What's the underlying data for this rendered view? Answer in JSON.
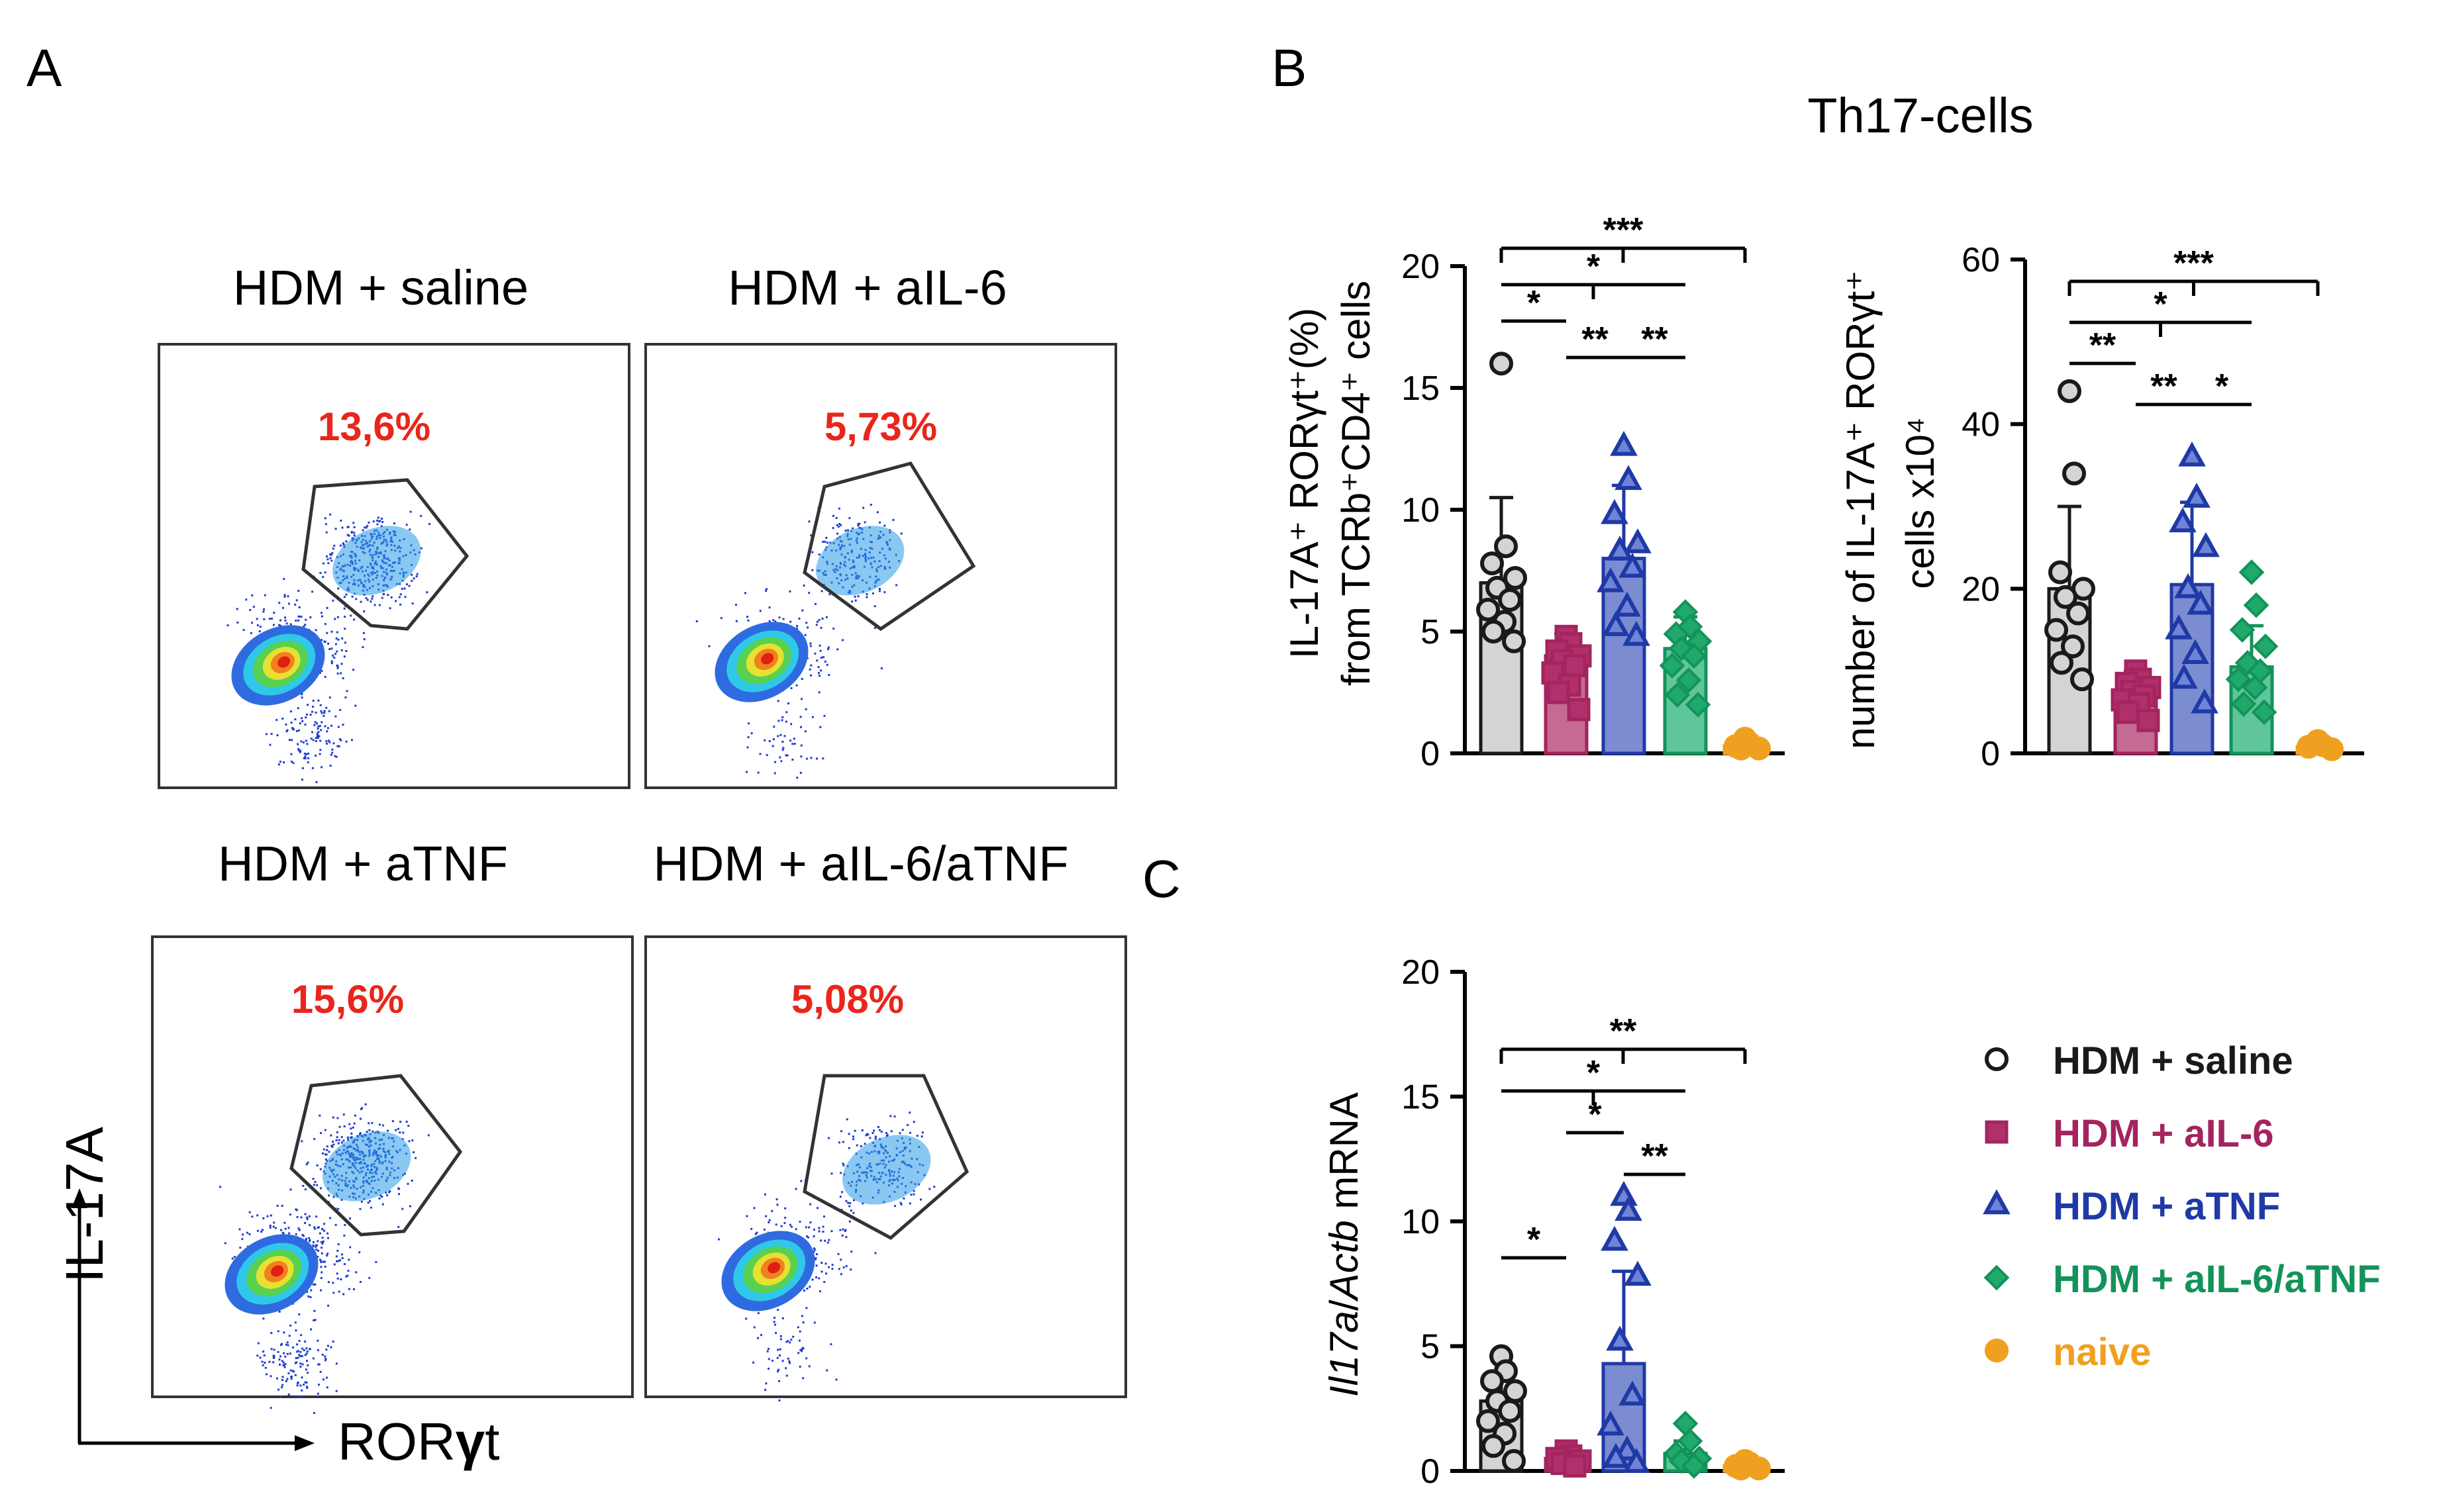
{
  "panels": {
    "A": "A",
    "B": "B",
    "C": "C"
  },
  "panel_a": {
    "plots": [
      {
        "label": "HDM + saline",
        "percent": "13,6%",
        "color": "#1a1a1a",
        "density": 1.0
      },
      {
        "label": "HDM + aIL-6",
        "percent": "5,73%",
        "color": "#c01818",
        "density": 0.55
      },
      {
        "label": "HDM + aTNF",
        "percent": "15,6%",
        "color": "#2e4fa8",
        "density": 1.1
      },
      {
        "label": "HDM + aIL-6/aTNF",
        "percent": "5,08%",
        "color": "#13935a",
        "density": 0.6
      }
    ],
    "y_axis_label": "IL-17A",
    "x_axis_label_prefix": "ROR",
    "x_axis_label_greek": "γ",
    "x_axis_label_suffix": "t"
  },
  "panel_b": {
    "title": "Th17-cells"
  },
  "legend": [
    {
      "label": "HDM + saline",
      "marker": "circle-open",
      "color": "#1a1a1a"
    },
    {
      "label": "HDM + aIL-6",
      "marker": "square",
      "color": "#a3245e"
    },
    {
      "label": "HDM + aTNF",
      "marker": "triangle",
      "color": "#1f3aa6"
    },
    {
      "label": "HDM + aIL-6/aTNF",
      "marker": "diamond",
      "color": "#13935a"
    },
    {
      "label": "naive",
      "marker": "circle",
      "color": "#f0a020"
    }
  ],
  "chart_data": [
    {
      "type": "bar",
      "id": "b-percent",
      "categories": [
        "HDM + saline",
        "HDM + aIL-6",
        "HDM + aTNF",
        "HDM + aIL-6/aTNF",
        "naive"
      ],
      "values": [
        7.0,
        4.0,
        8.0,
        4.3,
        0.3
      ],
      "error": [
        3.5,
        0.9,
        3.0,
        1.3,
        0.1
      ],
      "ylabel_line1": "IL-17A⁺ RORγt⁺(%)",
      "ylabel_line2": "from TCRb⁺CD4⁺ cells",
      "ylim": [
        0,
        20
      ],
      "yticks": [
        "0",
        "5",
        "10",
        "15",
        "20"
      ],
      "points": [
        [
          16,
          8.5,
          7.8,
          7.2,
          6.8,
          6.3,
          5.9,
          5.4,
          5.0,
          4.6
        ],
        [
          4.8,
          4.5,
          4.2,
          4.0,
          3.8,
          3.6,
          3.3,
          2.8,
          2.5,
          1.8
        ],
        [
          12.6,
          11.2,
          9.8,
          8.6,
          8.3,
          7.6,
          7.0,
          6.0,
          5.2,
          4.8
        ],
        [
          5.8,
          5.2,
          4.9,
          4.6,
          4.3,
          4.0,
          3.6,
          3.0,
          2.4,
          2.0
        ],
        [
          0.6,
          0.4,
          0.3,
          0.2,
          0.2
        ]
      ],
      "significance": [
        {
          "from": 0,
          "to": 4,
          "label": "***",
          "level": 0
        },
        {
          "from": 0,
          "to": 3,
          "label": "*",
          "level": 1
        },
        {
          "from": 0,
          "to": 1,
          "label": "*",
          "level": 2
        },
        {
          "from": 1,
          "to": 2,
          "label": "**",
          "level": 3
        },
        {
          "from": 2,
          "to": 3,
          "label": "**",
          "level": 3
        }
      ]
    },
    {
      "type": "bar",
      "id": "b-number",
      "categories": [
        "HDM + saline",
        "HDM + aIL-6",
        "HDM + aTNF",
        "HDM + aIL-6/aTNF",
        "naive"
      ],
      "values": [
        20,
        7.5,
        20.5,
        10.5,
        0.8
      ],
      "error": [
        10,
        2.5,
        10,
        5,
        0.3
      ],
      "ylabel_line1": "number of IL-17A⁺ RORγt⁺",
      "ylabel_line2": "cells x10⁴",
      "ylim": [
        0,
        60
      ],
      "yticks": [
        "0",
        "20",
        "40",
        "60"
      ],
      "points": [
        [
          44,
          34,
          22,
          20,
          19,
          17,
          15,
          13,
          11,
          9
        ],
        [
          10,
          9,
          8.5,
          8,
          7.5,
          7,
          6.5,
          6,
          5,
          4
        ],
        [
          36,
          31,
          28,
          25,
          20,
          18,
          15,
          12,
          9,
          6
        ],
        [
          22,
          18,
          15,
          13,
          11,
          10,
          9,
          8,
          6,
          5
        ],
        [
          1.5,
          1.0,
          0.8,
          0.5
        ]
      ],
      "significance": [
        {
          "from": 0,
          "to": 4,
          "label": "***",
          "level": 0
        },
        {
          "from": 0,
          "to": 3,
          "label": "*",
          "level": 1
        },
        {
          "from": 0,
          "to": 1,
          "label": "**",
          "level": 2
        },
        {
          "from": 1,
          "to": 2,
          "label": "**",
          "level": 3
        },
        {
          "from": 2,
          "to": 3,
          "label": "*",
          "level": 3
        }
      ]
    },
    {
      "type": "bar",
      "id": "c-mrna",
      "categories": [
        "HDM + saline",
        "HDM + aIL-6",
        "HDM + aTNF",
        "HDM + aIL-6/aTNF",
        "naive"
      ],
      "values": [
        2.8,
        0.5,
        4.3,
        0.7,
        0.2
      ],
      "error": [
        1.8,
        0.3,
        3.7,
        0.5,
        0.1
      ],
      "ylabel_italic_1": "Il17a",
      "ylabel_sep": "/",
      "ylabel_italic_2": "Actb",
      "ylabel_suffix": " mRNA",
      "ylim": [
        0,
        20
      ],
      "yticks": [
        "0",
        "5",
        "10",
        "15",
        "20"
      ],
      "points": [
        [
          4.6,
          4.0,
          3.6,
          3.2,
          2.8,
          2.4,
          2.0,
          1.5,
          1.0,
          0.4
        ],
        [
          0.8,
          0.6,
          0.5,
          0.4,
          0.3,
          0.2
        ],
        [
          11,
          10.4,
          9.2,
          7.8,
          5.2,
          3.0,
          1.8,
          0.8,
          0.5,
          0.3
        ],
        [
          1.9,
          1.2,
          0.7,
          0.5,
          0.4,
          0.2
        ],
        [
          0.4,
          0.3,
          0.2,
          0.1,
          0.1
        ]
      ],
      "significance": [
        {
          "from": 0,
          "to": 4,
          "label": "**",
          "level": 0
        },
        {
          "from": 0,
          "to": 3,
          "label": "*",
          "level": 1
        },
        {
          "from": 1,
          "to": 2,
          "label": "*",
          "level": 2
        },
        {
          "from": 2,
          "to": 3,
          "label": "**",
          "level": 3
        },
        {
          "from": 0,
          "to": 1,
          "label": "*",
          "level": 5
        }
      ]
    }
  ]
}
